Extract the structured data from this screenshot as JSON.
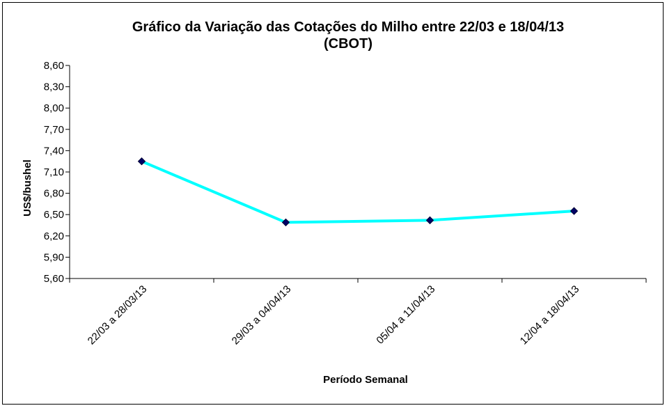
{
  "chart_data": {
    "type": "line",
    "title": "Gráfico da Variação das Cotações do Milho entre 22/03 e 18/04/13",
    "subtitle": "(CBOT)",
    "xlabel": "Período Semanal",
    "ylabel": "US$/bushel",
    "categories": [
      "22/03 a 28/03/13",
      "29/03 a 04/04/13",
      "05/04 a 11/04/13",
      "12/04 a 18/04/13"
    ],
    "series": [
      {
        "values": [
          7.25,
          6.39,
          6.42,
          6.55
        ],
        "color": "#00FFFF",
        "marker_color": "#000066"
      }
    ],
    "ylim": [
      5.6,
      8.6
    ],
    "yticks": [
      "5,60",
      "5,90",
      "6,20",
      "6,50",
      "6,80",
      "7,10",
      "7,40",
      "7,70",
      "8,00",
      "8,30",
      "8,60"
    ],
    "grid": false,
    "legend": "none"
  }
}
